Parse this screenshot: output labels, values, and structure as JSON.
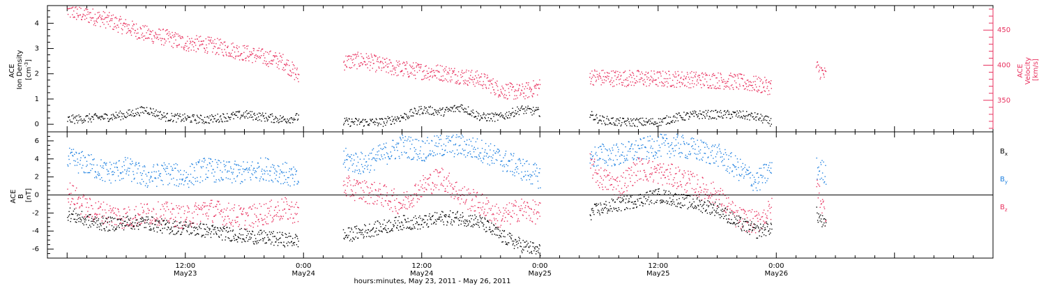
{
  "colors": {
    "black": "#000000",
    "pink": "#e8305e",
    "blue": "#1c7fe0"
  },
  "chart_data": [
    {
      "type": "scatter",
      "panel": "top",
      "left_axis": {
        "label_line1": "ACE",
        "label_line2": "Ion Density",
        "label_line3": "[cm",
        "label_line3_sup": "-3",
        "label_line3_end": "]",
        "ylim": [
          -0.3,
          4.7
        ],
        "ticks": [
          "0",
          "1",
          "2",
          "3",
          "4"
        ]
      },
      "right_axis": {
        "label_line1": "ACE",
        "label_line2": "Velocity",
        "label_line3": "[km/s]",
        "ylim": [
          305,
          485
        ],
        "ticks": [
          "350",
          "400",
          "450"
        ],
        "color": "#e8305e"
      },
      "series": [
        {
          "axis": "left",
          "color": "#000000",
          "x": [
            0.0,
            2.0,
            4.0,
            6.0,
            8.0,
            10.0,
            12.0,
            14.0,
            16.0,
            18.0,
            20.0,
            22.0,
            23.5,
            28.0,
            30.0,
            32.0,
            34.0,
            36.0,
            38.0,
            40.0,
            42.0,
            44.0,
            46.0,
            48.0,
            53.0,
            54.0,
            56.0,
            58.0,
            60.0,
            62.0,
            64.0,
            66.0,
            68.0,
            70.0,
            71.5
          ],
          "y": [
            0.2,
            0.25,
            0.3,
            0.4,
            0.6,
            0.3,
            0.25,
            0.2,
            0.3,
            0.4,
            0.3,
            0.2,
            0.3,
            0.1,
            0.1,
            0.1,
            0.3,
            0.6,
            0.5,
            0.7,
            0.3,
            0.3,
            0.6,
            0.5,
            0.4,
            0.2,
            0.1,
            0.1,
            0.1,
            0.3,
            0.4,
            0.4,
            0.4,
            0.3,
            0.1
          ]
        },
        {
          "axis": "right",
          "color": "#e8305e",
          "x": [
            0.0,
            2.0,
            4.0,
            6.0,
            8.0,
            10.0,
            12.0,
            14.0,
            16.0,
            18.0,
            20.0,
            22.0,
            23.5,
            28.0,
            30.0,
            32.0,
            34.0,
            36.0,
            38.0,
            40.0,
            42.0,
            44.0,
            46.0,
            48.0,
            53.0,
            54.0,
            56.0,
            58.0,
            60.0,
            62.0,
            64.0,
            66.0,
            68.0,
            70.0,
            71.5,
            76.0,
            77.0
          ],
          "y": [
            478,
            472,
            465,
            455,
            445,
            440,
            432,
            430,
            425,
            418,
            412,
            405,
            384,
            405,
            408,
            400,
            395,
            392,
            390,
            385,
            380,
            365,
            362,
            370,
            385,
            383,
            382,
            382,
            381,
            381,
            380,
            379,
            377,
            373,
            370,
            398,
            385
          ]
        }
      ]
    },
    {
      "type": "scatter",
      "panel": "bottom",
      "left_axis": {
        "label_line1": "ACE",
        "label_line2": "B",
        "label_line3": "[nT]",
        "ylim": [
          -7,
          7
        ],
        "ticks": [
          "-6",
          "-4",
          "-2",
          "0",
          "2",
          "4",
          "6"
        ]
      },
      "zero_line": true,
      "legend": [
        "B",
        "B",
        "B"
      ],
      "legend_sub": [
        "x",
        "y",
        "z"
      ],
      "series": [
        {
          "name_sub": "x",
          "color": "#000000",
          "x": [
            0.0,
            2.0,
            4.0,
            6.0,
            8.0,
            10.0,
            12.0,
            14.0,
            16.0,
            18.0,
            20.0,
            22.0,
            23.5,
            28.0,
            30.0,
            32.0,
            34.0,
            36.0,
            38.0,
            40.0,
            42.0,
            44.0,
            46.0,
            48.0,
            53.0,
            54.0,
            56.0,
            58.0,
            60.0,
            62.0,
            64.0,
            66.0,
            68.0,
            70.0,
            71.5,
            76.0,
            77.0
          ],
          "y": [
            -2.0,
            -2.8,
            -3.2,
            -3.0,
            -3.0,
            -3.5,
            -3.6,
            -3.9,
            -4.2,
            -4.5,
            -4.7,
            -4.9,
            -5.0,
            -4.5,
            -4.0,
            -3.5,
            -3.0,
            -3.0,
            -2.5,
            -2.5,
            -3.0,
            -4.5,
            -5.5,
            -6.2,
            -2.0,
            -1.5,
            -1.0,
            -0.5,
            0.0,
            -0.5,
            -1.0,
            -1.5,
            -3.0,
            -4.0,
            -3.5,
            -2.0,
            -3.5
          ]
        },
        {
          "name_sub": "y",
          "color": "#1c7fe0",
          "x": [
            0.0,
            2.0,
            4.0,
            6.0,
            8.0,
            10.0,
            12.0,
            14.0,
            16.0,
            18.0,
            20.0,
            22.0,
            23.5,
            28.0,
            30.0,
            32.0,
            34.0,
            36.0,
            38.0,
            40.0,
            42.0,
            44.0,
            46.0,
            48.0,
            53.0,
            54.0,
            56.0,
            58.0,
            60.0,
            62.0,
            64.0,
            66.0,
            68.0,
            70.0,
            71.5,
            76.0,
            77.0
          ],
          "y": [
            4.0,
            3.5,
            2.5,
            3.0,
            2.0,
            2.5,
            2.0,
            3.0,
            2.5,
            2.5,
            3.0,
            2.5,
            1.5,
            4.0,
            3.5,
            4.5,
            5.5,
            5.0,
            5.5,
            5.5,
            5.0,
            4.0,
            3.0,
            2.0,
            4.0,
            4.5,
            4.5,
            5.0,
            5.5,
            5.5,
            5.0,
            4.5,
            3.0,
            1.5,
            3.0,
            3.0,
            2.5
          ]
        },
        {
          "name_sub": "z",
          "color": "#e8305e",
          "x": [
            0.0,
            2.0,
            4.0,
            6.0,
            8.0,
            10.0,
            12.0,
            14.0,
            16.0,
            18.0,
            20.0,
            22.0,
            23.5,
            28.0,
            30.0,
            32.0,
            34.0,
            36.0,
            38.0,
            40.0,
            42.0,
            44.0,
            46.0,
            48.0,
            53.0,
            54.0,
            56.0,
            58.0,
            60.0,
            62.0,
            64.0,
            66.0,
            68.0,
            70.0,
            71.5,
            76.0,
            77.0
          ],
          "y": [
            0.5,
            -1.5,
            -2.0,
            -2.5,
            -2.0,
            -2.0,
            -2.5,
            -1.5,
            -2.0,
            -2.5,
            -2.0,
            -1.5,
            -2.0,
            1.0,
            0.5,
            0.0,
            -1.0,
            1.0,
            2.0,
            0.0,
            -1.0,
            -2.5,
            -1.5,
            -2.0,
            3.5,
            2.0,
            1.0,
            3.0,
            2.5,
            2.0,
            1.0,
            0.0,
            -2.5,
            -3.0,
            -1.5,
            1.5,
            -2.5
          ]
        }
      ]
    }
  ],
  "time_axis": {
    "title": "hours:minutes, May 23, 2011 - May 26, 2011",
    "xlim": [
      -2,
      94
    ],
    "ticks": [
      {
        "x": 12,
        "line1": "12:00",
        "line2": "May23"
      },
      {
        "x": 24,
        "line1": "0:00",
        "line2": "May24"
      },
      {
        "x": 36,
        "line1": "12:00",
        "line2": "May24"
      },
      {
        "x": 48,
        "line1": "0:00",
        "line2": "May25"
      },
      {
        "x": 60,
        "line1": "12:00",
        "line2": "May25"
      },
      {
        "x": 72,
        "line1": "0:00",
        "line2": "May26"
      }
    ]
  }
}
